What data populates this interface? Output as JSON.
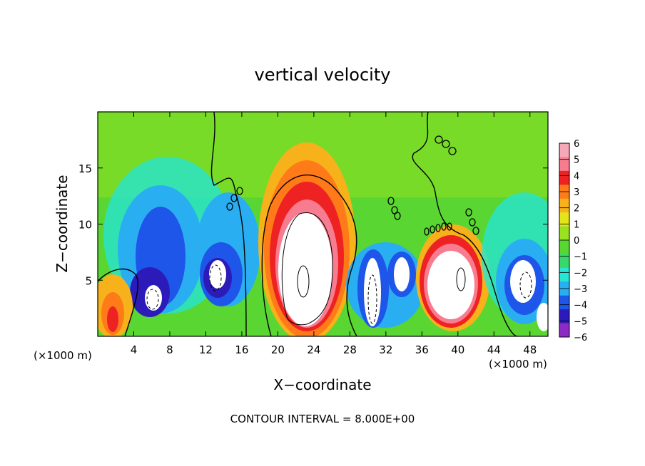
{
  "chart_data": {
    "type": "heatmap",
    "title": "vertical velocity",
    "xlabel": "X−coordinate",
    "ylabel": "Z−coordinate",
    "x_unit_left": "(×1000 m)",
    "x_unit_right": "(×1000 m)",
    "footer": "CONTOUR INTERVAL = 8.000E+00",
    "xlim": [
      0,
      50
    ],
    "ylim": [
      0,
      20
    ],
    "x_ticks": [
      4,
      8,
      12,
      16,
      20,
      24,
      28,
      32,
      36,
      40,
      44,
      48
    ],
    "y_ticks": [
      5,
      10,
      15
    ],
    "colorbar": {
      "min": -6,
      "max": 6,
      "labels": [
        "6",
        "5",
        "4",
        "3",
        "2",
        "1",
        "0",
        "−1",
        "−2",
        "−3",
        "−4",
        "−5",
        "−6"
      ],
      "colors": [
        "#f6a7b8",
        "#f87c8f",
        "#ee2222",
        "#ff7a18",
        "#f7b21b",
        "#e4e41a",
        "#9ae21f",
        "#5ad632",
        "#38d86b",
        "#26e5d2",
        "#2aaef2",
        "#1e56ea",
        "#2c1bb8",
        "#8d2ac4"
      ]
    },
    "features": [
      {
        "type": "updraft",
        "x": 23.0,
        "z": 6.5,
        "peak": 9
      },
      {
        "type": "updraft",
        "x": 39.5,
        "z": 4.5,
        "peak": 7
      },
      {
        "type": "updraft",
        "x": 2.2,
        "z": 2.0,
        "peak": 3.5
      },
      {
        "type": "downdraft",
        "x": 8.0,
        "z": 4.0,
        "peak": -8
      },
      {
        "type": "downdraft",
        "x": 13.5,
        "z": 5.5,
        "peak": -7
      },
      {
        "type": "downdraft",
        "x": 31.0,
        "z": 3.5,
        "peak": -8
      },
      {
        "type": "downdraft",
        "x": 34.0,
        "z": 5.0,
        "peak": -7
      },
      {
        "type": "downdraft",
        "x": 47.0,
        "z": 4.5,
        "peak": -8
      },
      {
        "type": "downdraft",
        "x": 9.0,
        "z": 10.5,
        "peak": -5
      }
    ]
  }
}
